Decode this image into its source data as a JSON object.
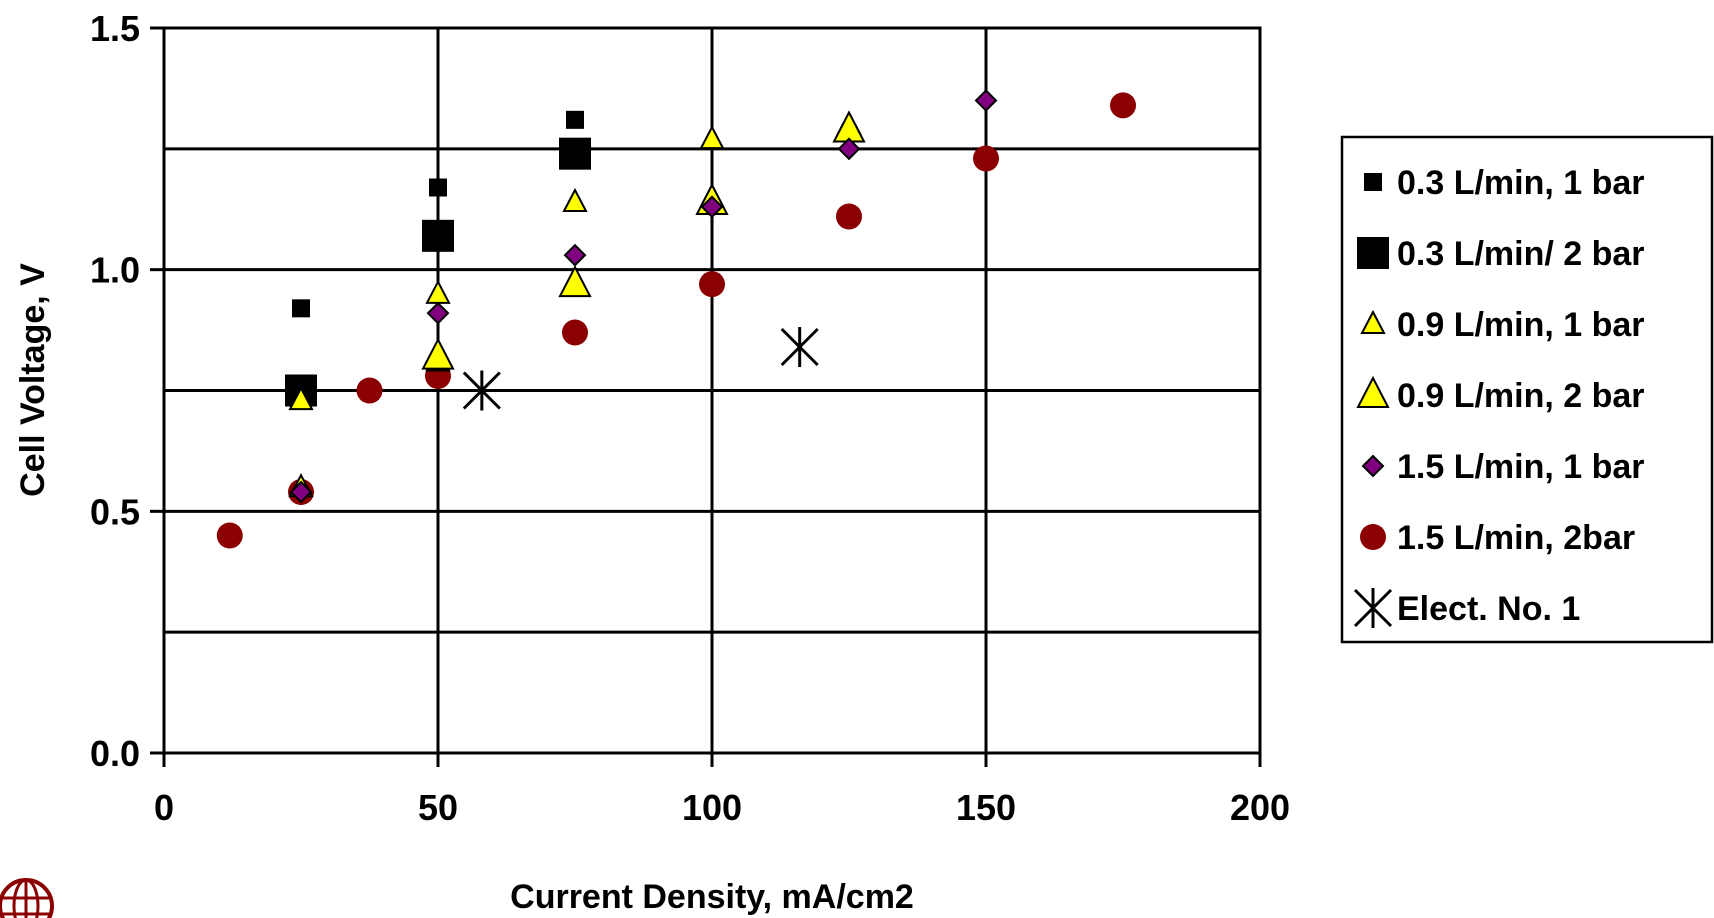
{
  "chart_data": {
    "type": "scatter",
    "title": "",
    "xlabel": "Current Density, mA/cm2",
    "ylabel": "Cell Voltage, V",
    "xlim": [
      0,
      200
    ],
    "ylim": [
      0.0,
      1.5
    ],
    "x_ticks": [
      "0",
      "50",
      "100",
      "150",
      "200"
    ],
    "y_ticks": [
      "0.0",
      "0.5",
      "1.0",
      "1.5"
    ],
    "grid": true,
    "legend_position": "right",
    "series": [
      {
        "name": "0.3 L/min, 1 bar",
        "marker": "square-small",
        "color": "#000000",
        "points": [
          [
            25,
            0.92
          ],
          [
            50,
            1.17
          ],
          [
            75,
            1.31
          ]
        ]
      },
      {
        "name": "0.3 L/min/ 2 bar",
        "marker": "square-large",
        "color": "#000000",
        "points": [
          [
            25,
            0.75
          ],
          [
            50,
            1.07
          ],
          [
            75,
            1.24
          ]
        ]
      },
      {
        "name": "0.9 L/min, 1 bar",
        "marker": "triangle-small",
        "color": "#ffff00",
        "points": [
          [
            25,
            0.55
          ],
          [
            25,
            0.73
          ],
          [
            50,
            0.81
          ],
          [
            50,
            0.95
          ],
          [
            75,
            1.14
          ],
          [
            100,
            1.27
          ],
          [
            100,
            1.15
          ],
          [
            125,
            1.3
          ]
        ]
      },
      {
        "name": "0.9 L/min, 2 bar",
        "marker": "triangle-large",
        "color": "#ffff00",
        "points": [
          [
            50,
            0.82
          ],
          [
            75,
            0.97
          ],
          [
            100,
            1.14
          ],
          [
            125,
            1.29
          ]
        ]
      },
      {
        "name": "1.5 L/min, 1 bar",
        "marker": "diamond",
        "color": "#800080",
        "points": [
          [
            25,
            0.54
          ],
          [
            50,
            0.91
          ],
          [
            75,
            1.03
          ],
          [
            100,
            1.13
          ],
          [
            125,
            1.25
          ],
          [
            150,
            1.35
          ]
        ]
      },
      {
        "name": "1.5 L/min, 2bar",
        "marker": "circle",
        "color": "#8b0000",
        "points": [
          [
            12,
            0.45
          ],
          [
            25,
            0.54
          ],
          [
            37.5,
            0.75
          ],
          [
            50,
            0.78
          ],
          [
            75,
            0.87
          ],
          [
            100,
            0.97
          ],
          [
            125,
            1.11
          ],
          [
            150,
            1.23
          ],
          [
            175,
            1.34
          ]
        ]
      },
      {
        "name": "Elect. No. 1",
        "marker": "asterisk",
        "color": "#000000",
        "points": [
          [
            58,
            0.75
          ],
          [
            116,
            0.84
          ]
        ]
      }
    ]
  }
}
